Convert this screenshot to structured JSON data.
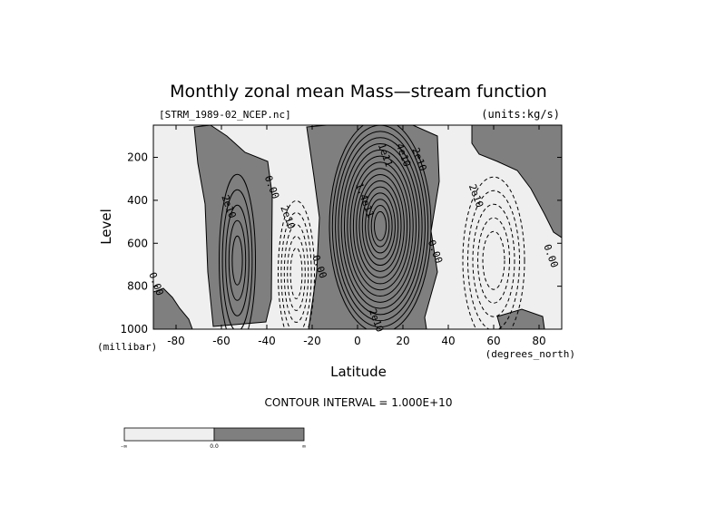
{
  "colors": {
    "positive_fill": "#7f7f7f",
    "negative_fill": "#efefef",
    "contour": "#000000",
    "background": "#ffffff"
  },
  "chart_data": {
    "type": "contour",
    "title": "Monthly zonal mean Mass—stream function",
    "file_label": "[STRM_1989-02_NCEP.nc]",
    "units_label": "(units:kg/s)",
    "xlabel": "Latitude",
    "x_units": "(degrees_north)",
    "ylabel": "Level",
    "y_units": "(millibar)",
    "xlim": [
      -90,
      90
    ],
    "ylim": [
      1000,
      50
    ],
    "y_inverted": true,
    "xticks": [
      -80,
      -60,
      -40,
      -20,
      0,
      20,
      40,
      60,
      80
    ],
    "yticks": [
      200,
      400,
      600,
      800,
      1000
    ],
    "contour_interval_text": "CONTOUR INTERVAL = 1.000E+10",
    "contour_interval": 10000000000.0,
    "contour_labels": [
      {
        "text": "2e10",
        "lat": -57,
        "lev": 430
      },
      {
        "text": "0.00",
        "lat": -38,
        "lev": 340
      },
      {
        "text": "2e10",
        "lat": -31,
        "lev": 480
      },
      {
        "text": "0.00",
        "lat": -17,
        "lev": 710
      },
      {
        "text": "0.00",
        "lat": -89,
        "lev": 790
      },
      {
        "text": "1e11",
        "lat": 12,
        "lev": 190
      },
      {
        "text": "4e10",
        "lat": 20,
        "lev": 190
      },
      {
        "text": "2e10",
        "lat": 27,
        "lev": 210
      },
      {
        "text": "1.4e11",
        "lat": 3,
        "lev": 400
      },
      {
        "text": "0.00",
        "lat": 34,
        "lev": 640
      },
      {
        "text": "2e10",
        "lat": 52,
        "lev": 380
      },
      {
        "text": "0.00",
        "lat": 85,
        "lev": 660
      },
      {
        "text": "2e10",
        "lat": 8,
        "lev": 960
      }
    ],
    "cells": [
      {
        "name": "southern-positive-cell",
        "sign": "positive",
        "lat_center": -53,
        "lev_center": 680,
        "peak": 50000000000.0,
        "levels": 5
      },
      {
        "name": "southern-negative-cell",
        "sign": "negative",
        "lat_center": -27,
        "lev_center": 740,
        "peak": -50000000000.0,
        "levels": 5
      },
      {
        "name": "hadley-positive-cell",
        "sign": "positive",
        "lat_center": 10,
        "lev_center": 520,
        "peak": 160000000000.0,
        "levels": 16
      },
      {
        "name": "northern-negative-cell",
        "sign": "negative",
        "lat_center": 60,
        "lev_center": 680,
        "peak": -50000000000.0,
        "levels": 5
      }
    ],
    "colorbar": {
      "labels": [
        "-∞",
        "0.0",
        "∞"
      ],
      "fills": [
        "negative",
        "positive"
      ]
    }
  }
}
